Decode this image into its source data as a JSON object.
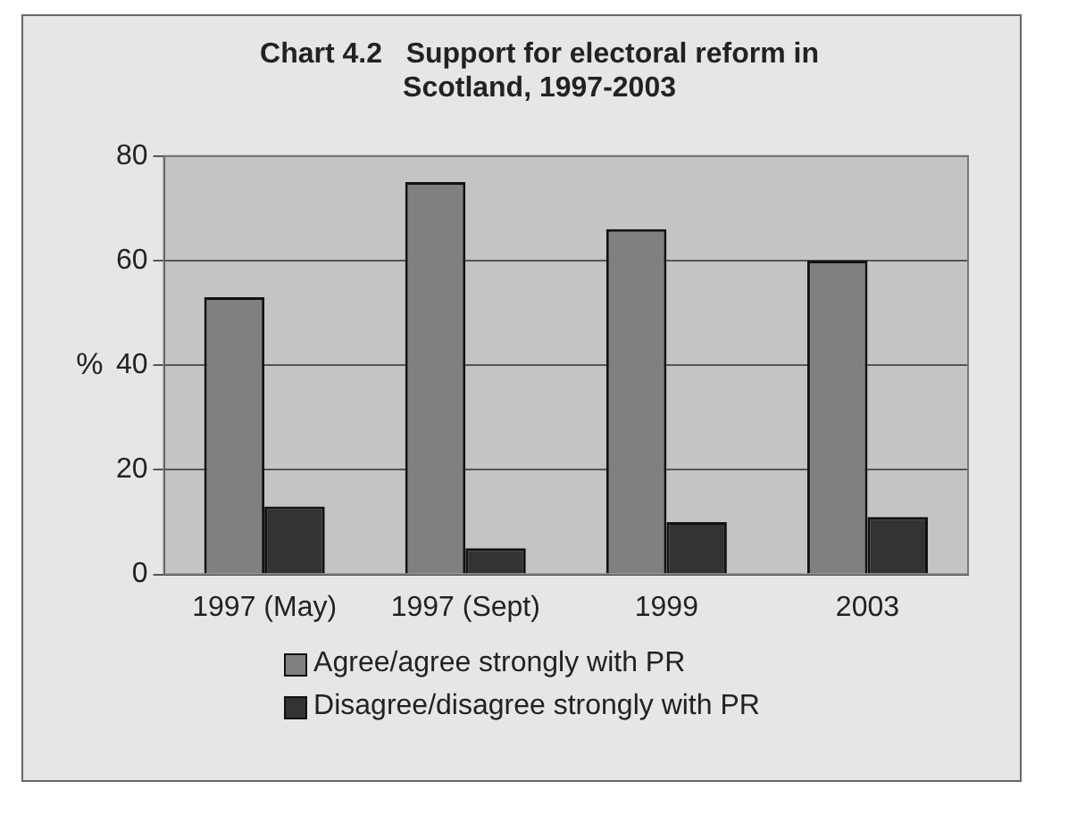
{
  "chart_data": {
    "type": "bar",
    "title": [
      "Chart 4.2   Support for electoral reform in",
      "Scotland, 1997-2003"
    ],
    "ylabel": "%",
    "categories": [
      "1997 (May)",
      "1997 (Sept)",
      "1999",
      "2003"
    ],
    "series": [
      {
        "name": "Agree/agree strongly with PR",
        "color": "#808080",
        "values": [
          53,
          75,
          66,
          60
        ]
      },
      {
        "name": "Disagree/disagree strongly with PR",
        "color": "#333333",
        "values": [
          13,
          5,
          10,
          11
        ]
      }
    ],
    "ylim": [
      0,
      80
    ],
    "yticks": [
      0,
      20,
      40,
      60,
      80
    ],
    "grid": "y",
    "legend": "bottom"
  }
}
